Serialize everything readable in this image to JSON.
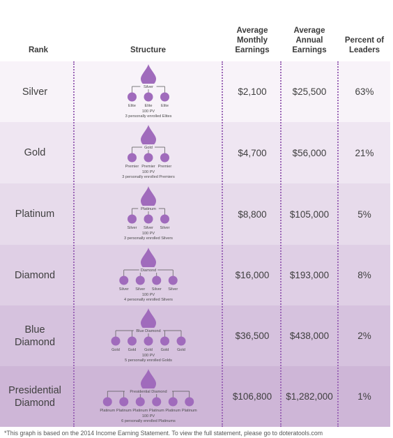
{
  "headers": {
    "rank": "Rank",
    "structure": "Structure",
    "monthly": "Average\nMonthly\nEarnings",
    "annual": "Average\nAnnual\nEarnings",
    "percent": "Percent of\nLeaders"
  },
  "colors": {
    "drop": "#a06bbc",
    "dots": "#9b66b6",
    "row_backgrounds": [
      "#f8f3f9",
      "#efe6f2",
      "#e7dbeb",
      "#dfcfe5",
      "#d6c2de",
      "#ceb6d7"
    ]
  },
  "rows": [
    {
      "rank": "Silver",
      "top_label": "Silver",
      "children": [
        "Elite",
        "Elite",
        "Elite"
      ],
      "pv": "100 PV",
      "note": "3 personally enrolled Elites",
      "monthly": "$2,100",
      "annual": "$25,500",
      "percent": "63%"
    },
    {
      "rank": "Gold",
      "top_label": "Gold",
      "children": [
        "Premier",
        "Premier",
        "Premier"
      ],
      "pv": "100 PV",
      "note": "3 personally enrolled Premiers",
      "monthly": "$4,700",
      "annual": "$56,000",
      "percent": "21%"
    },
    {
      "rank": "Platinum",
      "top_label": "Platinum",
      "children": [
        "Silver",
        "Silver",
        "Silver"
      ],
      "pv": "100 PV",
      "note": "3 personally enrolled Silvers",
      "monthly": "$8,800",
      "annual": "$105,000",
      "percent": "5%"
    },
    {
      "rank": "Diamond",
      "top_label": "Diamond",
      "children": [
        "Silver",
        "Silver",
        "Silver",
        "Silver"
      ],
      "pv": "100 PV",
      "note": "4 personally enrolled Silvers",
      "monthly": "$16,000",
      "annual": "$193,000",
      "percent": "8%"
    },
    {
      "rank": "Blue\nDiamond",
      "top_label": "Blue Diamond",
      "children": [
        "Gold",
        "Gold",
        "Gold",
        "Gold",
        "Gold"
      ],
      "pv": "100 PV",
      "note": "5 personally enrolled Golds",
      "monthly": "$36,500",
      "annual": "$438,000",
      "percent": "2%"
    },
    {
      "rank": "Presidential\nDiamond",
      "top_label": "Presidential Diamond",
      "children": [
        "Platinum",
        "Platinum",
        "Platinum",
        "Platinum",
        "Platinum",
        "Platinum"
      ],
      "pv": "100 PV",
      "note": "6 personally enrolled Platinums",
      "monthly": "$106,800",
      "annual": "$1,282,000",
      "percent": "1%"
    }
  ],
  "footnote": "*This graph is based on the 2014 Income Earning Statement. To view the full statement, please go to doteratools.com"
}
